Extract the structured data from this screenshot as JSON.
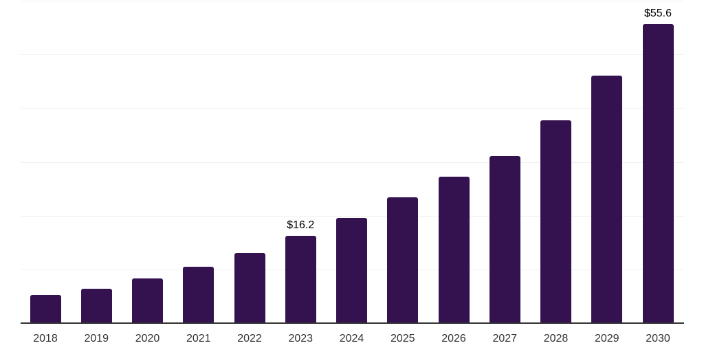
{
  "chart_data": {
    "type": "bar",
    "title": "",
    "xlabel": "",
    "ylabel": "",
    "categories": [
      "2018",
      "2019",
      "2020",
      "2021",
      "2022",
      "2023",
      "2024",
      "2025",
      "2026",
      "2027",
      "2028",
      "2029",
      "2030"
    ],
    "values": [
      5.2,
      6.4,
      8.3,
      10.5,
      13.0,
      16.2,
      19.6,
      23.4,
      27.2,
      31.1,
      37.8,
      46.0,
      55.6
    ],
    "ylim": [
      0,
      60
    ],
    "grid": true,
    "gridline_values": [
      10,
      20,
      30,
      40,
      50,
      60
    ],
    "y_axis_labels_visible": false,
    "legend": false,
    "data_labels": [
      {
        "category": "2023",
        "text": "$16.2"
      },
      {
        "category": "2030",
        "text": "$55.6"
      }
    ],
    "colors": {
      "bar": "#33124F",
      "axis_line": "#333333",
      "tick_label": "#333333",
      "data_label": "#000000",
      "gridline": "#F0F0F0",
      "background": "#FFFFFF"
    }
  }
}
